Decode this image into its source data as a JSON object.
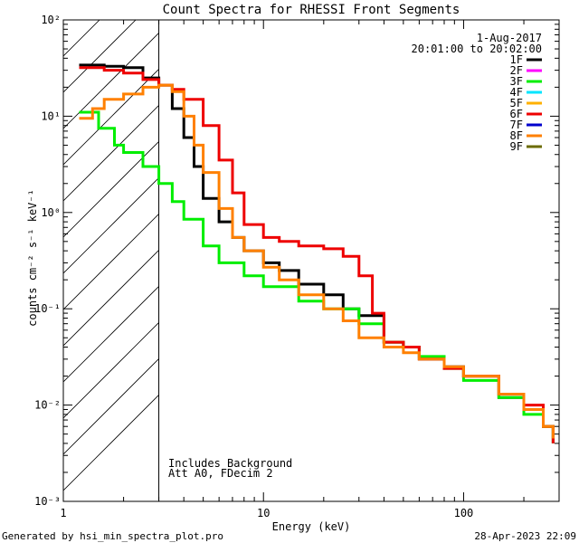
{
  "chart_data": {
    "type": "line",
    "title": "Count Spectra for RHESSI Front Segments",
    "xlabel": "Energy (keV)",
    "ylabel": "counts cm⁻² s⁻¹ keV⁻¹",
    "xscale": "log",
    "yscale": "log",
    "xlim": [
      1,
      300
    ],
    "ylim": [
      0.001,
      100
    ],
    "x_tick_labels": [
      "1",
      "10",
      "100"
    ],
    "y_tick_labels": [
      "10⁻³",
      "10⁻²",
      "10⁻¹",
      "10⁰",
      "10¹",
      "10²"
    ],
    "date": "1-Aug-2017",
    "time_range": "20:01:00 to 20:02:00",
    "attenuator_note": "Includes Background",
    "settings_note": "Att A0, FDecim 2",
    "shaded_region_xmax_keV": 3,
    "legend": [
      {
        "name": "1F",
        "color": "#000000"
      },
      {
        "name": "2F",
        "color": "#ff00ff"
      },
      {
        "name": "3F",
        "color": "#00ee00"
      },
      {
        "name": "4F",
        "color": "#00e5ff"
      },
      {
        "name": "5F",
        "color": "#ffb000"
      },
      {
        "name": "6F",
        "color": "#ee0000"
      },
      {
        "name": "7F",
        "color": "#0000cc"
      },
      {
        "name": "8F",
        "color": "#ff8000"
      },
      {
        "name": "9F",
        "color": "#6b6b00"
      }
    ],
    "series": [
      {
        "name": "1F",
        "color": "#000000",
        "x": [
          1.2,
          1.6,
          2.0,
          2.5,
          3.0,
          3.5,
          4.0,
          4.5,
          5.0,
          6.0,
          7.0,
          8.0,
          10.0,
          12.0,
          15.0,
          20.0,
          25.0,
          30.0,
          40.0,
          50.0,
          60.0,
          80.0,
          100.0,
          150.0,
          200.0,
          250.0,
          280.0
        ],
        "y": [
          34,
          33,
          32,
          25,
          21,
          12,
          6.0,
          3.0,
          1.4,
          0.8,
          0.55,
          0.4,
          0.3,
          0.25,
          0.18,
          0.14,
          0.1,
          0.085,
          0.045,
          0.04,
          0.03,
          0.025,
          0.02,
          0.012,
          0.009,
          0.006,
          0.004
        ]
      },
      {
        "name": "3F",
        "color": "#00ee00",
        "x": [
          1.2,
          1.5,
          1.8,
          2.0,
          2.5,
          3.0,
          3.5,
          4.0,
          5.0,
          6.0,
          8.0,
          10.0,
          15.0,
          20.0,
          30.0,
          40.0,
          50.0,
          60.0,
          80.0,
          100.0,
          150.0,
          200.0,
          250.0,
          280.0
        ],
        "y": [
          11,
          7.5,
          5.0,
          4.2,
          3.0,
          2.0,
          1.3,
          0.85,
          0.45,
          0.3,
          0.22,
          0.17,
          0.12,
          0.1,
          0.07,
          0.045,
          0.04,
          0.032,
          0.024,
          0.018,
          0.012,
          0.008,
          0.006,
          0.004
        ]
      },
      {
        "name": "6F",
        "color": "#ee0000",
        "x": [
          1.2,
          1.6,
          2.0,
          2.5,
          3.0,
          3.5,
          4.0,
          5.0,
          6.0,
          7.0,
          8.0,
          10.0,
          12.0,
          15.0,
          20.0,
          25.0,
          30.0,
          35.0,
          40.0,
          50.0,
          60.0,
          80.0,
          100.0,
          150.0,
          200.0,
          250.0,
          280.0
        ],
        "y": [
          32,
          30,
          28,
          24,
          21,
          19,
          15,
          8.0,
          3.5,
          1.6,
          0.75,
          0.55,
          0.5,
          0.45,
          0.42,
          0.35,
          0.22,
          0.09,
          0.045,
          0.04,
          0.03,
          0.024,
          0.02,
          0.013,
          0.01,
          0.006,
          0.004
        ]
      },
      {
        "name": "8F",
        "color": "#ff8000",
        "x": [
          1.2,
          1.4,
          1.6,
          2.0,
          2.5,
          3.0,
          3.5,
          4.0,
          4.5,
          5.0,
          6.0,
          7.0,
          8.0,
          10.0,
          12.0,
          15.0,
          20.0,
          25.0,
          30.0,
          40.0,
          50.0,
          60.0,
          80.0,
          100.0,
          150.0,
          200.0,
          250.0,
          280.0
        ],
        "y": [
          9.5,
          12,
          15,
          17,
          20,
          21,
          18,
          10,
          5.0,
          2.6,
          1.1,
          0.55,
          0.4,
          0.27,
          0.2,
          0.14,
          0.1,
          0.075,
          0.05,
          0.04,
          0.035,
          0.03,
          0.025,
          0.02,
          0.013,
          0.009,
          0.006,
          0.0045
        ]
      }
    ]
  },
  "footer": {
    "left": "Generated by hsi_min_spectra_plot.pro",
    "right": "28-Apr-2023 22:09"
  }
}
